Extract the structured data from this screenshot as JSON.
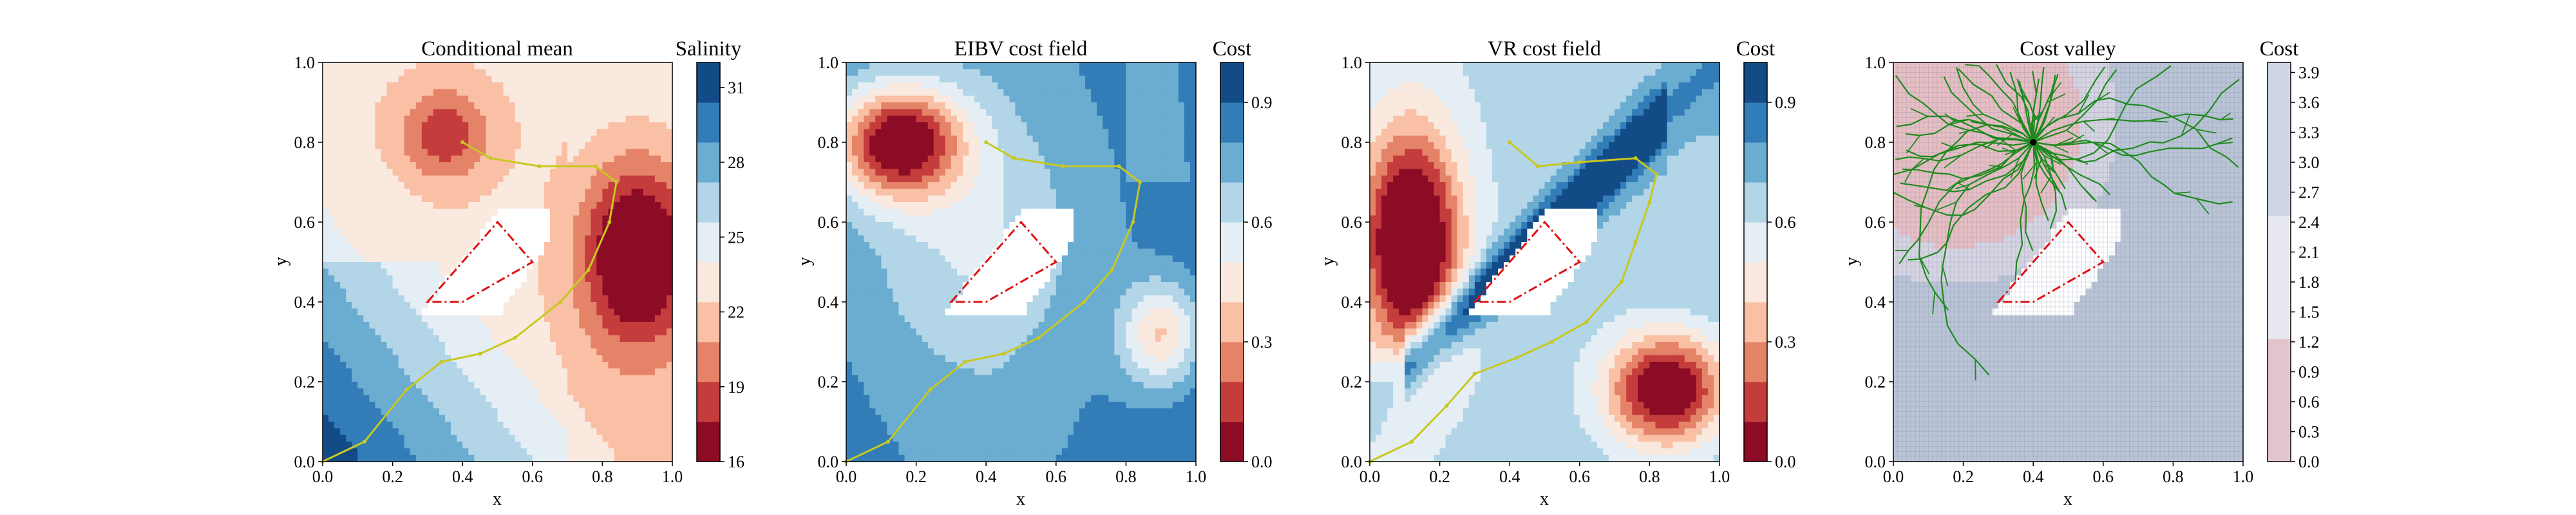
{
  "panels": [
    {
      "title": "Conditional mean",
      "xlabel": "x",
      "ylabel": "y",
      "colorbar_label": "Salinity",
      "colorbar_ticks": [
        "16",
        "19",
        "22",
        "25",
        "28",
        "31"
      ],
      "field": "salinity",
      "path_style": "yellow"
    },
    {
      "title": "EIBV cost field",
      "xlabel": "x",
      "ylabel": "y",
      "colorbar_label": "Cost",
      "colorbar_ticks": [
        "0.0",
        "0.3",
        "0.6",
        "0.9"
      ],
      "field": "eibv",
      "path_style": "yellow"
    },
    {
      "title": "VR cost field",
      "xlabel": "x",
      "ylabel": "y",
      "colorbar_label": "Cost",
      "colorbar_ticks": [
        "0.0",
        "0.3",
        "0.6",
        "0.9"
      ],
      "field": "vr",
      "path_style": "navy"
    },
    {
      "title": "Cost valley",
      "xlabel": "x",
      "ylabel": "y",
      "colorbar_label": "Cost",
      "colorbar_ticks": [
        "0.0",
        "0.3",
        "0.6",
        "0.9",
        "1.2",
        "1.5",
        "1.8",
        "2.1",
        "2.4",
        "2.7",
        "3.0",
        "3.3",
        "3.6",
        "3.9"
      ],
      "field": "valley",
      "path_style": "tree"
    }
  ],
  "axis_ticks": [
    "0.0",
    "0.2",
    "0.4",
    "0.6",
    "0.8",
    "1.0"
  ],
  "chart_data": [
    {
      "type": "heatmap",
      "title": "Conditional mean",
      "xlabel": "x",
      "ylabel": "y",
      "xlim": [
        0,
        1
      ],
      "ylim": [
        0,
        1
      ],
      "colorbar": {
        "label": "Salinity",
        "range": [
          16,
          32
        ]
      },
      "path": {
        "x": [
          0.0,
          0.12,
          0.24,
          0.34,
          0.45,
          0.55,
          0.68,
          0.76,
          0.82,
          0.84,
          0.78,
          0.62,
          0.48,
          0.4
        ],
        "y": [
          0.0,
          0.05,
          0.18,
          0.25,
          0.27,
          0.31,
          0.4,
          0.48,
          0.6,
          0.7,
          0.74,
          0.74,
          0.76,
          0.8
        ]
      },
      "obstacle_polygon": {
        "x": [
          0.3,
          0.5,
          0.6,
          0.4
        ],
        "y": [
          0.4,
          0.6,
          0.5,
          0.4
        ]
      }
    },
    {
      "type": "heatmap",
      "title": "EIBV cost field",
      "xlabel": "x",
      "ylabel": "y",
      "xlim": [
        0,
        1
      ],
      "ylim": [
        0,
        1
      ],
      "colorbar": {
        "label": "Cost",
        "range": [
          0,
          1
        ]
      },
      "path": {
        "x": [
          0.0,
          0.12,
          0.24,
          0.34,
          0.45,
          0.55,
          0.68,
          0.76,
          0.82,
          0.84,
          0.78,
          0.62,
          0.48,
          0.4
        ],
        "y": [
          0.0,
          0.05,
          0.18,
          0.25,
          0.27,
          0.31,
          0.4,
          0.48,
          0.6,
          0.7,
          0.74,
          0.74,
          0.76,
          0.8
        ]
      }
    },
    {
      "type": "heatmap",
      "title": "VR cost field",
      "xlabel": "x",
      "ylabel": "y",
      "xlim": [
        0,
        1
      ],
      "ylim": [
        0,
        1
      ],
      "colorbar": {
        "label": "Cost",
        "range": [
          0,
          1
        ]
      },
      "path": {
        "x": [
          0.0,
          0.12,
          0.22,
          0.3,
          0.42,
          0.52,
          0.62,
          0.72,
          0.76,
          0.8,
          0.82,
          0.76,
          0.6,
          0.48,
          0.4
        ],
        "y": [
          0.0,
          0.05,
          0.14,
          0.22,
          0.26,
          0.3,
          0.35,
          0.45,
          0.55,
          0.65,
          0.72,
          0.76,
          0.75,
          0.74,
          0.8
        ]
      }
    },
    {
      "type": "heatmap",
      "title": "Cost valley",
      "xlabel": "x",
      "ylabel": "y",
      "xlim": [
        0,
        1
      ],
      "ylim": [
        0,
        1
      ],
      "colorbar": {
        "label": "Cost",
        "range": [
          0,
          4
        ]
      },
      "tree_root": [
        0.4,
        0.8
      ]
    }
  ]
}
